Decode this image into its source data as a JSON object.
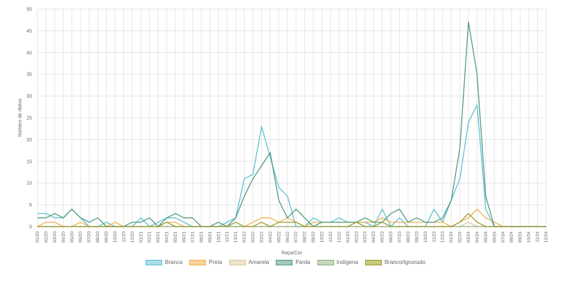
{
  "chart_data": {
    "type": "line",
    "title": "",
    "xlabel": "Raça/Cor",
    "ylabel": "Número de óbitos",
    "ylim": [
      0,
      50
    ],
    "yticks": [
      0,
      5,
      10,
      15,
      20,
      25,
      30,
      35,
      40,
      45,
      50
    ],
    "grid": true,
    "legend_position": "bottom",
    "categories": [
      "01/20",
      "02/20",
      "03/20",
      "04/20",
      "05/20",
      "06/20",
      "07/20",
      "08/20",
      "09/20",
      "10/20",
      "11/20",
      "12/20",
      "01/21",
      "02/21",
      "03/21",
      "04/21",
      "05/21",
      "06/21",
      "07/21",
      "08/21",
      "09/21",
      "10/21",
      "11/21",
      "12/21",
      "01/22",
      "02/22",
      "03/22",
      "04/22",
      "05/22",
      "06/22",
      "07/22",
      "08/22",
      "09/22",
      "10/22",
      "11/22",
      "12/22",
      "01/23",
      "02/23",
      "03/23",
      "04/23",
      "05/23",
      "06/23",
      "07/23",
      "08/23",
      "09/23",
      "10/23",
      "11/23",
      "12/23",
      "01/24",
      "02/24",
      "03/24",
      "04/24",
      "05/24",
      "06/24",
      "07/24",
      "08/24",
      "09/24",
      "10/24",
      "11/24",
      "12/24"
    ],
    "series": [
      {
        "name": "Branca",
        "color": "#5bc0d0",
        "fill": "#a8dfe8",
        "values": [
          3,
          3,
          2,
          2,
          4,
          2,
          0,
          0,
          1,
          0,
          0,
          0,
          2,
          0,
          1,
          2,
          2,
          1,
          0,
          0,
          0,
          0,
          1,
          2,
          11,
          12,
          23,
          16,
          9,
          7,
          0,
          0,
          2,
          1,
          1,
          2,
          1,
          1,
          1,
          0,
          4,
          0,
          2,
          0,
          0,
          0,
          4,
          1,
          6,
          11,
          24,
          28,
          4,
          0,
          0,
          0,
          0,
          0,
          0,
          0
        ]
      },
      {
        "name": "Preta",
        "color": "#f0b04a",
        "fill": "#f7d49a",
        "values": [
          0,
          1,
          1,
          0,
          0,
          1,
          0,
          0,
          0,
          1,
          0,
          0,
          0,
          0,
          0,
          1,
          1,
          0,
          0,
          0,
          0,
          0,
          0,
          0,
          0,
          1,
          2,
          2,
          1,
          2,
          1,
          0,
          1,
          1,
          1,
          1,
          1,
          1,
          1,
          1,
          2,
          1,
          1,
          1,
          1,
          1,
          1,
          1,
          0,
          1,
          2,
          4,
          2,
          1,
          0,
          0,
          0,
          0,
          0,
          0
        ]
      },
      {
        "name": "Amarela",
        "color": "#d8c8a0",
        "fill": "#ece3c8",
        "values": [
          0,
          0,
          0,
          0,
          0,
          0,
          0,
          0,
          0,
          0,
          0,
          0,
          0,
          0,
          0,
          0,
          0,
          0,
          0,
          0,
          0,
          0,
          0,
          0,
          0,
          0,
          0,
          0,
          0,
          0,
          0,
          0,
          0,
          0,
          0,
          0,
          0,
          0,
          0,
          0,
          0,
          0,
          0,
          0,
          0,
          0,
          0,
          0,
          0,
          0,
          1,
          0,
          0,
          0,
          0,
          0,
          0,
          0,
          0,
          0
        ]
      },
      {
        "name": "Parda",
        "color": "#4e9a7c",
        "fill": "#9fcbb8",
        "values": [
          2,
          2,
          3,
          2,
          4,
          2,
          1,
          2,
          0,
          0,
          0,
          1,
          1,
          2,
          0,
          2,
          3,
          2,
          2,
          0,
          0,
          1,
          0,
          2,
          7,
          11,
          14,
          17,
          6,
          2,
          4,
          2,
          0,
          1,
          1,
          1,
          1,
          1,
          2,
          1,
          1,
          3,
          4,
          1,
          2,
          1,
          1,
          2,
          6,
          18,
          47,
          35,
          7,
          0,
          0,
          0,
          0,
          0,
          0,
          0
        ]
      },
      {
        "name": "Indígena",
        "color": "#8fae7e",
        "fill": "#c6d8bb",
        "values": [
          0,
          0,
          0,
          0,
          0,
          0,
          0,
          0,
          0,
          0,
          0,
          0,
          0,
          0,
          0,
          0,
          0,
          0,
          0,
          0,
          0,
          0,
          0,
          0,
          0,
          0,
          0,
          0,
          0,
          0,
          0,
          0,
          0,
          0,
          0,
          0,
          0,
          0,
          0,
          0,
          0,
          0,
          0,
          0,
          0,
          0,
          0,
          0,
          0,
          0,
          0,
          0,
          0,
          0,
          0,
          0,
          0,
          0,
          0,
          0
        ]
      },
      {
        "name": "Branco/Ignorado",
        "color": "#9a9a30",
        "fill": "#c9c980",
        "values": [
          0,
          0,
          0,
          0,
          0,
          0,
          0,
          0,
          0,
          0,
          0,
          0,
          0,
          0,
          0,
          1,
          0,
          0,
          0,
          0,
          0,
          0,
          0,
          1,
          0,
          0,
          1,
          0,
          1,
          1,
          1,
          0,
          0,
          0,
          0,
          0,
          0,
          1,
          0,
          0,
          1,
          0,
          0,
          0,
          0,
          0,
          0,
          0,
          0,
          1,
          3,
          1,
          0,
          0,
          0,
          0,
          0,
          0,
          0,
          0
        ]
      }
    ]
  }
}
